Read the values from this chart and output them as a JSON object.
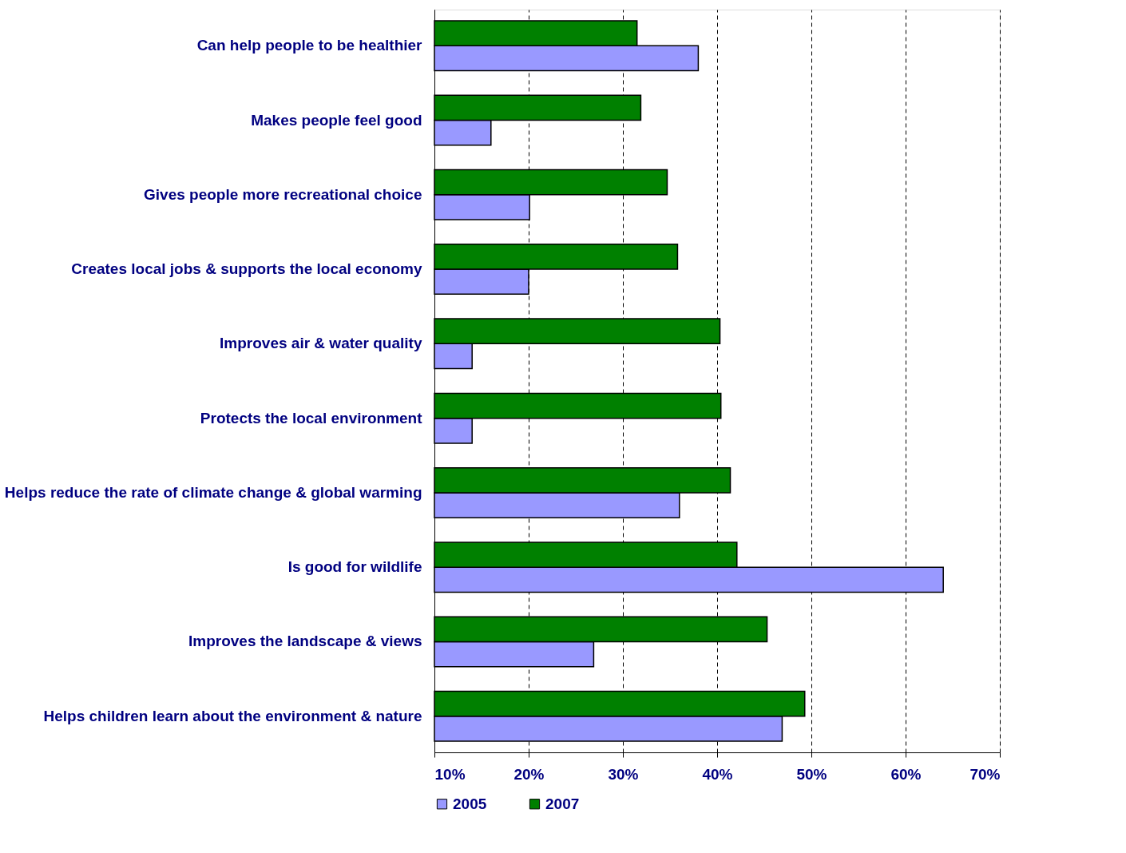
{
  "chart_data": {
    "type": "bar",
    "orientation": "horizontal",
    "categories": [
      "Can help people to be healthier",
      "Makes people feel good",
      "Gives people more recreational choice",
      "Creates local jobs & supports the local economy",
      "Improves air & water quality",
      "Protects the local environment",
      "Helps reduce the rate of climate change & global warming",
      "Is good for wildlife",
      "Improves the landscape & views",
      "Helps children learn about the environment & nature"
    ],
    "series": [
      {
        "name": "2005",
        "color": "#9999ff",
        "values": [
          38.0,
          16.0,
          20.1,
          20.0,
          14.0,
          14.0,
          36.0,
          64.0,
          26.9,
          46.9
        ]
      },
      {
        "name": "2007",
        "color": "#008000",
        "values": [
          31.5,
          31.9,
          34.7,
          35.8,
          40.3,
          40.4,
          41.4,
          42.1,
          45.3,
          49.3
        ]
      }
    ],
    "xlim": [
      10,
      70
    ],
    "xticks": [
      {
        "value": 10,
        "label": "10%"
      },
      {
        "value": 20,
        "label": "20%"
      },
      {
        "value": 30,
        "label": "30%"
      },
      {
        "value": 40,
        "label": "40%"
      },
      {
        "value": 50,
        "label": "50%"
      },
      {
        "value": 60,
        "label": "60%"
      },
      {
        "value": 70,
        "label": "70%"
      }
    ],
    "grid": "x",
    "legend": "bottom"
  }
}
